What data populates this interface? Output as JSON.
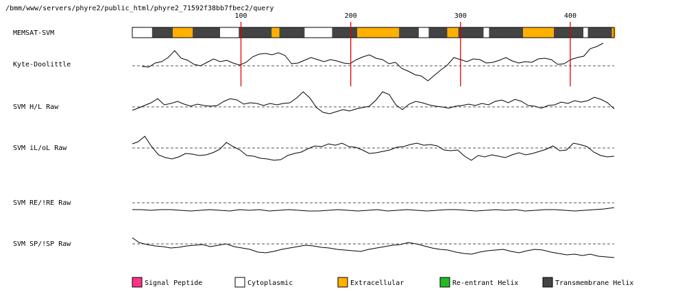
{
  "header": {
    "path": "/bmm/www/servers/phyre2/public_html/phyre2_71592f38bb7fbec2/query"
  },
  "colors": {
    "signal_peptide": "#ff3388",
    "cytoplasmic": "#ffffff",
    "extracellular": "#ffb000",
    "reentrant_helix": "#22bb22",
    "transmembrane_helix": "#444444",
    "marker": "#dd0000",
    "baseline": "#555555",
    "trace": "#000000"
  },
  "chart_data": {
    "type": "line",
    "sequence_length": 440,
    "ruler_ticks": [
      100,
      200,
      300,
      400
    ],
    "memsat": {
      "label": "MEMSAT-SVM",
      "segments": [
        {
          "start": 1,
          "end": 18,
          "type": "cytoplasmic"
        },
        {
          "start": 19,
          "end": 37,
          "type": "transmembrane_helix"
        },
        {
          "start": 38,
          "end": 55,
          "type": "extracellular"
        },
        {
          "start": 56,
          "end": 80,
          "type": "transmembrane_helix"
        },
        {
          "start": 81,
          "end": 97,
          "type": "cytoplasmic"
        },
        {
          "start": 98,
          "end": 127,
          "type": "transmembrane_helix"
        },
        {
          "start": 128,
          "end": 134,
          "type": "extracellular"
        },
        {
          "start": 135,
          "end": 157,
          "type": "transmembrane_helix"
        },
        {
          "start": 158,
          "end": 182,
          "type": "cytoplasmic"
        },
        {
          "start": 183,
          "end": 205,
          "type": "transmembrane_helix"
        },
        {
          "start": 206,
          "end": 243,
          "type": "extracellular"
        },
        {
          "start": 244,
          "end": 261,
          "type": "transmembrane_helix"
        },
        {
          "start": 262,
          "end": 270,
          "type": "cytoplasmic"
        },
        {
          "start": 271,
          "end": 287,
          "type": "transmembrane_helix"
        },
        {
          "start": 288,
          "end": 297,
          "type": "extracellular"
        },
        {
          "start": 298,
          "end": 320,
          "type": "transmembrane_helix"
        },
        {
          "start": 321,
          "end": 325,
          "type": "cytoplasmic"
        },
        {
          "start": 326,
          "end": 356,
          "type": "transmembrane_helix"
        },
        {
          "start": 357,
          "end": 384,
          "type": "extracellular"
        },
        {
          "start": 385,
          "end": 411,
          "type": "transmembrane_helix"
        },
        {
          "start": 412,
          "end": 415,
          "type": "cytoplasmic"
        },
        {
          "start": 416,
          "end": 437,
          "type": "transmembrane_helix"
        },
        {
          "start": 438,
          "end": 440,
          "type": "extracellular"
        }
      ]
    },
    "tracks": [
      {
        "label": "Kyte-Doolittle",
        "x_start": 10,
        "x_end": 430,
        "values": [
          -0.1,
          -0.2,
          0.4,
          0.6,
          1.2,
          2.2,
          1.1,
          0.8,
          0.2,
          0,
          0.5,
          1,
          0.6,
          0.8,
          0.4,
          0.1,
          0.5,
          1.3,
          1.7,
          1.8,
          1.6,
          1.9,
          1.5,
          0.3,
          0.4,
          0.8,
          1.2,
          0.9,
          0.6,
          0.9,
          0.7,
          0.4,
          0.3,
          0.9,
          1.3,
          1.6,
          1.1,
          0.9,
          0.3,
          0.5,
          -0.4,
          -0.8,
          -1.3,
          -1.5,
          -2.2,
          -1.4,
          -0.6,
          0.1,
          1.2,
          0.9,
          0.6,
          1,
          0.9,
          0.4,
          0.5,
          0.8,
          1.2,
          0.7,
          0.4,
          0.6,
          0.5,
          1,
          1.1,
          0.9,
          0.2,
          0.3,
          0.9,
          1.2,
          1.4,
          2.5,
          2.8,
          3.3
        ]
      },
      {
        "label": "SVM H/L Raw",
        "x_start": 0,
        "x_end": 440,
        "values": [
          -0.5,
          -0.2,
          0.2,
          0.6,
          1.2,
          0.3,
          0.5,
          0.8,
          0.4,
          0.1,
          0.4,
          0.2,
          0.1,
          0.2,
          0.8,
          1.2,
          1,
          0.4,
          0.6,
          0.5,
          0.2,
          0.5,
          0.3,
          0.5,
          0.6,
          1.3,
          2.2,
          1.3,
          -0.1,
          -0.8,
          -1,
          -0.7,
          -0.4,
          -0.6,
          -0.3,
          -0.1,
          0.1,
          1,
          2.2,
          1.8,
          0.3,
          -0.4,
          0.4,
          0.8,
          0.6,
          0.3,
          0.1,
          0,
          -0.2,
          0.1,
          0.2,
          0.4,
          0.2,
          0.5,
          0.3,
          0.8,
          1,
          0.6,
          1.1,
          0.8,
          0.2,
          0.1,
          -0.2,
          0.2,
          0.3,
          0.7,
          0.5,
          0.9,
          0.7,
          0.9,
          1.4,
          1.1,
          0.6,
          -0.3
        ]
      },
      {
        "label": "SVM iL/oL Raw",
        "x_start": 0,
        "x_end": 440,
        "values": [
          0.6,
          0.9,
          1.7,
          0.2,
          -1,
          -1.4,
          -1.6,
          -1.3,
          -0.8,
          -0.9,
          -1.1,
          -1,
          -0.7,
          -0.2,
          0.8,
          0.2,
          -0.3,
          -1.1,
          -1.2,
          -1.5,
          -1.6,
          -1.8,
          -1.7,
          -1.1,
          -0.8,
          -0.6,
          -0.1,
          0.3,
          0.2,
          0.6,
          0.4,
          0.7,
          0.2,
          0.1,
          -0.3,
          -0.8,
          -0.7,
          -0.5,
          -0.3,
          0.1,
          0.2,
          0.5,
          0.7,
          0.4,
          0.5,
          0.3,
          -0.3,
          -0.4,
          -0.3,
          -1.2,
          -1.8,
          -1.1,
          -1.3,
          -1,
          -1.2,
          -1.4,
          -1,
          -0.7,
          -1,
          -0.8,
          -0.5,
          -0.2,
          0.3,
          -0.4,
          -0.3,
          0.7,
          0.5,
          0.2,
          -0.6,
          -1.1,
          -1.3,
          -1.2
        ]
      },
      {
        "label": "SVM RE/!RE Raw",
        "x_start": 0,
        "x_end": 440,
        "values": [
          -1,
          -1,
          -1.1,
          -1,
          -1,
          -1.1,
          -1.2,
          -1.1,
          -1,
          -1.1,
          -1.2,
          -1,
          -1.1,
          -1,
          -1.2,
          -1.1,
          -1,
          -1.1,
          -1.2,
          -1.2,
          -1.1,
          -1,
          -1.1,
          -1.2,
          -1.1,
          -1,
          -1.2,
          -1.1,
          -1,
          -1.1,
          -1.2,
          -1.1,
          -1,
          -1,
          -1.1,
          -1.2,
          -1.1,
          -1,
          -1.1,
          -1,
          -1.2,
          -1.1,
          -1,
          -1,
          -1.1,
          -1.2,
          -1.1,
          -1,
          -0.9,
          -0.7
        ]
      },
      {
        "label": "SVM SP/!SP Raw",
        "x_start": 0,
        "x_end": 440,
        "values": [
          0.9,
          0.2,
          -0.1,
          -0.3,
          -0.4,
          -0.6,
          -0.5,
          -0.3,
          -0.2,
          -0.1,
          -0.4,
          -0.2,
          0,
          -0.4,
          -0.6,
          -0.8,
          -1.2,
          -1.3,
          -1.1,
          -0.8,
          -0.6,
          -0.4,
          -0.2,
          -0.3,
          -0.5,
          -0.6,
          -0.8,
          -0.9,
          -1,
          -1.1,
          -0.8,
          -0.6,
          -0.4,
          -0.2,
          -0.1,
          0.2,
          0,
          -0.3,
          -0.6,
          -0.8,
          -0.9,
          -1.2,
          -1.4,
          -1.5,
          -1.2,
          -1,
          -0.9,
          -0.8,
          -1.1,
          -1.3,
          -1,
          -0.8,
          -0.9,
          -1.2,
          -1.4,
          -1.6,
          -1.5,
          -1.7,
          -1.5,
          -1.8,
          -1.9,
          -2
        ]
      }
    ],
    "legend": [
      {
        "key": "signal_peptide",
        "label": "Signal Peptide"
      },
      {
        "key": "cytoplasmic",
        "label": "Cytoplasmic"
      },
      {
        "key": "extracellular",
        "label": "Extracellular"
      },
      {
        "key": "reentrant_helix",
        "label": "Re-entrant Helix"
      },
      {
        "key": "transmembrane_helix",
        "label": "Transmembrane Helix"
      }
    ]
  }
}
